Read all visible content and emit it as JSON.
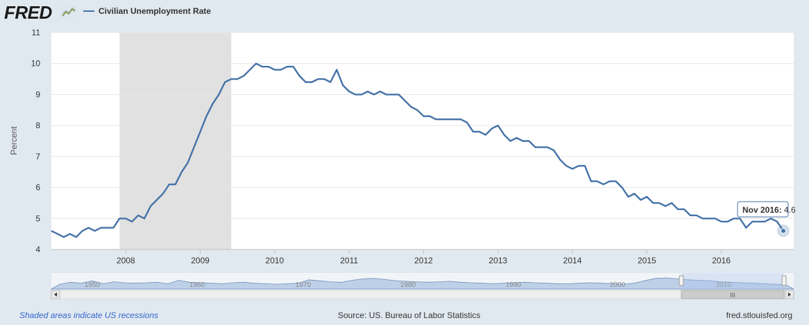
{
  "brand": {
    "logo_text": "FRED",
    "logo_icon": "chart-line-icon"
  },
  "legend": {
    "label": "Civilian Unemployment Rate",
    "color": "#4572a7"
  },
  "tooltip": {
    "date": "Nov 2016",
    "value": "4.6"
  },
  "footer": {
    "note": "Shaded areas indicate US recessions",
    "source": "Source: US. Bureau of Labor Statistics",
    "site": "fred.stlouisfed.org"
  },
  "navigator": {
    "labels": [
      "1950",
      "1960",
      "1970",
      "1980",
      "1990",
      "2000",
      "2010"
    ],
    "scroll_grip": "III"
  },
  "colors": {
    "background": "#e1e9f0",
    "plot_background": "#ffffff",
    "line": "#4572a7",
    "recession": "#e1e1e1",
    "navigator_fill": "#bdd0e8"
  },
  "chart_data": {
    "type": "line",
    "title": "",
    "xlabel": "",
    "ylabel": "Percent",
    "ylim": [
      4,
      11
    ],
    "yticks": [
      4,
      5,
      6,
      7,
      8,
      9,
      10,
      11
    ],
    "xticks": [
      "2008",
      "2009",
      "2010",
      "2011",
      "2012",
      "2013",
      "2014",
      "2015",
      "2016"
    ],
    "grid": true,
    "start": "Jan 2007",
    "recession_shading": [
      {
        "start": "Dec 2007",
        "end": "Jun 2009"
      }
    ],
    "series": [
      {
        "name": "Civilian Unemployment Rate",
        "values": [
          4.6,
          4.5,
          4.4,
          4.5,
          4.4,
          4.6,
          4.7,
          4.6,
          4.7,
          4.7,
          4.7,
          5.0,
          5.0,
          4.9,
          5.1,
          5.0,
          5.4,
          5.6,
          5.8,
          6.1,
          6.1,
          6.5,
          6.8,
          7.3,
          7.8,
          8.3,
          8.7,
          9.0,
          9.4,
          9.5,
          9.5,
          9.6,
          9.8,
          10.0,
          9.9,
          9.9,
          9.8,
          9.8,
          9.9,
          9.9,
          9.6,
          9.4,
          9.4,
          9.5,
          9.5,
          9.4,
          9.8,
          9.3,
          9.1,
          9.0,
          9.0,
          9.1,
          9.0,
          9.1,
          9.0,
          9.0,
          9.0,
          8.8,
          8.6,
          8.5,
          8.3,
          8.3,
          8.2,
          8.2,
          8.2,
          8.2,
          8.2,
          8.1,
          7.8,
          7.8,
          7.7,
          7.9,
          8.0,
          7.7,
          7.5,
          7.6,
          7.5,
          7.5,
          7.3,
          7.3,
          7.3,
          7.2,
          6.9,
          6.7,
          6.6,
          6.7,
          6.7,
          6.2,
          6.2,
          6.1,
          6.2,
          6.2,
          6.0,
          5.7,
          5.8,
          5.6,
          5.7,
          5.5,
          5.5,
          5.4,
          5.5,
          5.3,
          5.3,
          5.1,
          5.1,
          5.0,
          5.0,
          5.0,
          4.9,
          4.9,
          5.0,
          5.0,
          4.7,
          4.9,
          4.9,
          4.9,
          5.0,
          4.9,
          4.6
        ]
      }
    ]
  }
}
